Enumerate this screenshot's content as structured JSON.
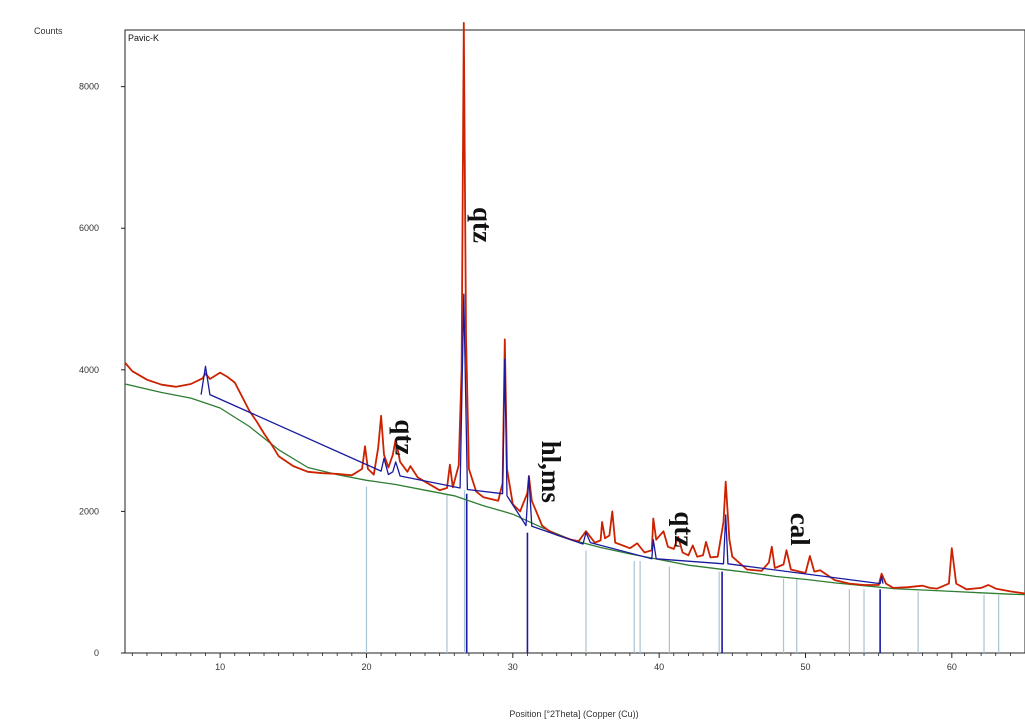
{
  "chart_data": {
    "type": "line",
    "sample_label": "Pavic-K",
    "ylabel": "Counts",
    "xlabel": "Position [°2Theta] (Copper (Cu))",
    "xlim": [
      3.5,
      65
    ],
    "ylim": [
      0,
      8800
    ],
    "x_ticks": [
      10,
      20,
      30,
      40,
      50,
      60
    ],
    "y_ticks": [
      0,
      2000,
      4000,
      6000,
      8000
    ],
    "grid": false,
    "colors": {
      "observed": "#cc2200",
      "calculated": "#1a1aa0",
      "background": "#2e7d32",
      "reference": "#a9c4d4",
      "reference_major": "#1a1aa0"
    },
    "series": [
      {
        "role": "observed",
        "points": [
          [
            3.5,
            4100
          ],
          [
            4,
            3980
          ],
          [
            5,
            3860
          ],
          [
            6,
            3790
          ],
          [
            7,
            3760
          ],
          [
            8,
            3800
          ],
          [
            8.8,
            3880
          ],
          [
            9,
            3950
          ],
          [
            9.3,
            3870
          ],
          [
            10,
            3960
          ],
          [
            10.5,
            3900
          ],
          [
            11,
            3820
          ],
          [
            11.5,
            3620
          ],
          [
            12,
            3420
          ],
          [
            12.5,
            3270
          ],
          [
            13,
            3100
          ],
          [
            13.5,
            2950
          ],
          [
            14,
            2780
          ],
          [
            15,
            2640
          ],
          [
            16,
            2560
          ],
          [
            17,
            2540
          ],
          [
            18,
            2530
          ],
          [
            19,
            2510
          ],
          [
            19.7,
            2600
          ],
          [
            19.9,
            2920
          ],
          [
            20.1,
            2600
          ],
          [
            20.5,
            2520
          ],
          [
            20.8,
            2900
          ],
          [
            21,
            3350
          ],
          [
            21.2,
            2800
          ],
          [
            21.5,
            2620
          ],
          [
            21.8,
            2800
          ],
          [
            22,
            3020
          ],
          [
            22.3,
            2700
          ],
          [
            22.8,
            2560
          ],
          [
            23,
            2640
          ],
          [
            23.5,
            2480
          ],
          [
            24,
            2420
          ],
          [
            25,
            2300
          ],
          [
            25.5,
            2330
          ],
          [
            25.7,
            2660
          ],
          [
            25.9,
            2340
          ],
          [
            26.3,
            2650
          ],
          [
            26.5,
            4000
          ],
          [
            26.65,
            8900
          ],
          [
            26.8,
            4500
          ],
          [
            27,
            2600
          ],
          [
            27.5,
            2280
          ],
          [
            28,
            2200
          ],
          [
            29,
            2150
          ],
          [
            29.3,
            2400
          ],
          [
            29.45,
            4430
          ],
          [
            29.6,
            2600
          ],
          [
            30,
            2100
          ],
          [
            30.5,
            2000
          ],
          [
            31,
            2260
          ],
          [
            31.1,
            2500
          ],
          [
            31.3,
            2150
          ],
          [
            32,
            1800
          ],
          [
            32.5,
            1720
          ],
          [
            33,
            1670
          ],
          [
            34,
            1600
          ],
          [
            34.5,
            1580
          ],
          [
            35,
            1720
          ],
          [
            35.3,
            1640
          ],
          [
            35.6,
            1560
          ],
          [
            36,
            1590
          ],
          [
            36.1,
            1850
          ],
          [
            36.3,
            1620
          ],
          [
            36.6,
            1660
          ],
          [
            36.8,
            2000
          ],
          [
            37,
            1560
          ],
          [
            38,
            1480
          ],
          [
            38.5,
            1550
          ],
          [
            39,
            1420
          ],
          [
            39.5,
            1450
          ],
          [
            39.6,
            1900
          ],
          [
            39.8,
            1600
          ],
          [
            40.3,
            1720
          ],
          [
            40.6,
            1500
          ],
          [
            41,
            1470
          ],
          [
            41.3,
            1640
          ],
          [
            41.6,
            1420
          ],
          [
            42,
            1380
          ],
          [
            42.3,
            1520
          ],
          [
            42.6,
            1360
          ],
          [
            43,
            1380
          ],
          [
            43.2,
            1570
          ],
          [
            43.5,
            1350
          ],
          [
            44,
            1360
          ],
          [
            44.4,
            1850
          ],
          [
            44.55,
            2420
          ],
          [
            44.8,
            1600
          ],
          [
            45,
            1360
          ],
          [
            46,
            1180
          ],
          [
            47,
            1160
          ],
          [
            47.5,
            1280
          ],
          [
            47.7,
            1500
          ],
          [
            47.9,
            1200
          ],
          [
            48.5,
            1250
          ],
          [
            48.7,
            1450
          ],
          [
            49,
            1180
          ],
          [
            50,
            1130
          ],
          [
            50.3,
            1370
          ],
          [
            50.6,
            1150
          ],
          [
            51,
            1170
          ],
          [
            52,
            1030
          ],
          [
            53,
            980
          ],
          [
            54,
            960
          ],
          [
            55,
            960
          ],
          [
            55.2,
            1120
          ],
          [
            55.5,
            980
          ],
          [
            56,
            920
          ],
          [
            57,
            930
          ],
          [
            58,
            950
          ],
          [
            58.5,
            920
          ],
          [
            59,
            910
          ],
          [
            59.8,
            980
          ],
          [
            60,
            1480
          ],
          [
            60.3,
            980
          ],
          [
            61,
            900
          ],
          [
            62,
            920
          ],
          [
            62.5,
            960
          ],
          [
            63,
            910
          ],
          [
            64,
            870
          ],
          [
            65,
            840
          ]
        ]
      },
      {
        "role": "calculated",
        "points": [
          [
            8.7,
            3650
          ],
          [
            9,
            4050
          ],
          [
            9.3,
            3650
          ],
          [
            21,
            2570
          ],
          [
            21.2,
            2750
          ],
          [
            21.5,
            2520
          ],
          [
            21.8,
            2560
          ],
          [
            22,
            2700
          ],
          [
            22.3,
            2500
          ],
          [
            26.4,
            2330
          ],
          [
            26.65,
            5070
          ],
          [
            26.9,
            2310
          ],
          [
            29.3,
            2250
          ],
          [
            29.45,
            4150
          ],
          [
            29.6,
            2220
          ],
          [
            30.9,
            1800
          ],
          [
            31.1,
            2500
          ],
          [
            31.3,
            1790
          ],
          [
            34.8,
            1540
          ],
          [
            35,
            1700
          ],
          [
            35.3,
            1560
          ],
          [
            39.5,
            1330
          ],
          [
            39.6,
            1600
          ],
          [
            39.8,
            1330
          ],
          [
            44.4,
            1260
          ],
          [
            44.55,
            1950
          ],
          [
            44.7,
            1260
          ],
          [
            55.1,
            980
          ],
          [
            55.2,
            1080
          ],
          [
            55.3,
            980
          ]
        ]
      },
      {
        "role": "background",
        "points": [
          [
            3.5,
            3800
          ],
          [
            6,
            3680
          ],
          [
            8,
            3600
          ],
          [
            10,
            3460
          ],
          [
            12,
            3200
          ],
          [
            14,
            2870
          ],
          [
            16,
            2620
          ],
          [
            18,
            2520
          ],
          [
            20,
            2440
          ],
          [
            22,
            2380
          ],
          [
            24,
            2300
          ],
          [
            26,
            2220
          ],
          [
            28,
            2080
          ],
          [
            30,
            1960
          ],
          [
            32,
            1770
          ],
          [
            34,
            1600
          ],
          [
            36,
            1490
          ],
          [
            38,
            1400
          ],
          [
            40,
            1320
          ],
          [
            42,
            1240
          ],
          [
            44,
            1190
          ],
          [
            46,
            1140
          ],
          [
            48,
            1080
          ],
          [
            50,
            1040
          ],
          [
            52,
            990
          ],
          [
            54,
            950
          ],
          [
            56,
            910
          ],
          [
            58,
            890
          ],
          [
            60,
            870
          ],
          [
            62,
            850
          ],
          [
            64,
            830
          ],
          [
            65,
            825
          ]
        ]
      }
    ],
    "reference_lines": [
      {
        "x": 20.0,
        "h": 2350,
        "major": false
      },
      {
        "x": 25.5,
        "h": 2250,
        "major": false
      },
      {
        "x": 26.7,
        "h": 2300,
        "major": false
      },
      {
        "x": 26.85,
        "h": 2250,
        "major": true
      },
      {
        "x": 31.0,
        "h": 1700,
        "major": true
      },
      {
        "x": 35.0,
        "h": 1450,
        "major": false
      },
      {
        "x": 38.3,
        "h": 1300,
        "major": false
      },
      {
        "x": 38.7,
        "h": 1300,
        "major": false
      },
      {
        "x": 40.7,
        "h": 1220,
        "major": false
      },
      {
        "x": 44.1,
        "h": 1150,
        "major": false
      },
      {
        "x": 44.3,
        "h": 1150,
        "major": true
      },
      {
        "x": 48.5,
        "h": 1050,
        "major": false
      },
      {
        "x": 49.4,
        "h": 1050,
        "major": false
      },
      {
        "x": 53.0,
        "h": 900,
        "major": false
      },
      {
        "x": 54.0,
        "h": 900,
        "major": false
      },
      {
        "x": 55.1,
        "h": 900,
        "major": true
      },
      {
        "x": 57.7,
        "h": 870,
        "major": false
      },
      {
        "x": 62.2,
        "h": 820,
        "major": false
      },
      {
        "x": 63.2,
        "h": 820,
        "major": false
      }
    ],
    "annotations": [
      {
        "text": "qtz",
        "x": 27.3,
        "y": 6300,
        "rotate": 90
      },
      {
        "text": "qtz",
        "x": 22.0,
        "y": 3300,
        "rotate": 90
      },
      {
        "text": "hl,ms",
        "x": 32.0,
        "y": 3000,
        "rotate": 90
      },
      {
        "text": "qtz",
        "x": 41.1,
        "y": 2000,
        "rotate": 90
      },
      {
        "text": "cal",
        "x": 49.0,
        "y": 1980,
        "rotate": 90
      }
    ]
  }
}
